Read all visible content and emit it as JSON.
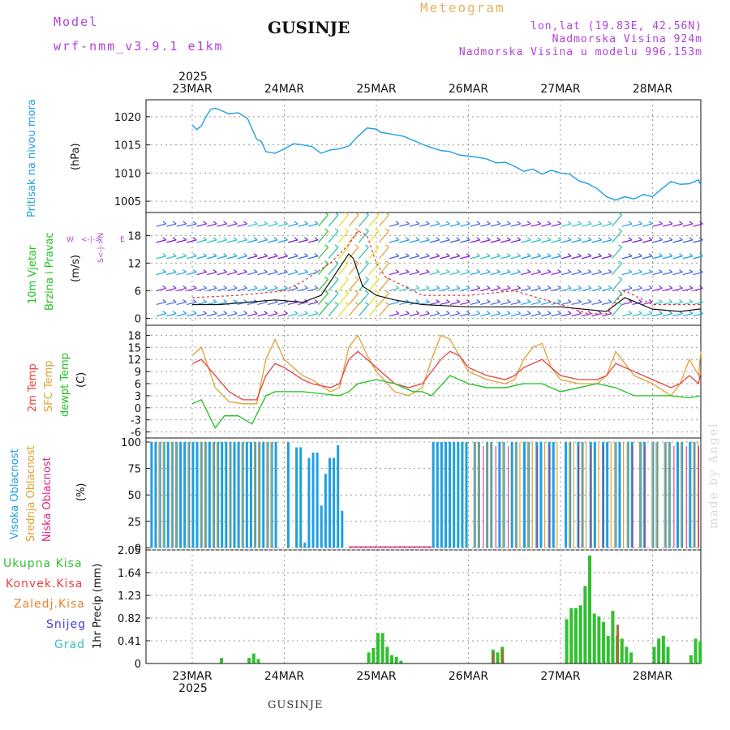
{
  "header": {
    "model_label": "Model",
    "model_name": "wrf-nmm_v3.9.1 e1km",
    "title": "GUSINJE",
    "meteogram": "Meteogram",
    "lonlat": "lon,lat (19.83E, 42.56N)",
    "altitude": "Nadmorska Visina 924m",
    "model_altitude": "Nadmorska Visina u modelu 996.153m",
    "year": "2025"
  },
  "footer": {
    "name": "GUSINJE",
    "made_by": "made by Angel"
  },
  "colors": {
    "pressure": "#1e9fe0",
    "gust": "#e83030",
    "wind_speed": "#111111",
    "temp2m": "#e84040",
    "sfc_temp": "#e0a030",
    "dewpt": "#20c020",
    "high_cloud": "#1e9fe0",
    "mid_cloud": "#e0a030",
    "low_cloud": "#e0207a",
    "precip_total": "#30c030",
    "precip_frozen": "#a07030"
  },
  "x_ticks": [
    "23MAR",
    "24MAR",
    "25MAR",
    "26MAR",
    "27MAR",
    "28MAR"
  ],
  "panels": {
    "pressure": {
      "ylabel_main": "Pritisak na nivou mora",
      "unit": "(hPa)",
      "ticks": [
        "1005",
        "1010",
        "1015",
        "1020"
      ]
    },
    "wind": {
      "ylabel_a": "10m Vjetar",
      "ylabel_b": "Brzina i Pravac",
      "unit": "(m/s)",
      "ticks": [
        "0",
        "6",
        "12",
        "18"
      ],
      "compass_w": "W",
      "compass_e": "E",
      "compass_arrow": "<-|->",
      "compass_ns": "S<-|->N"
    },
    "temp": {
      "label_2m": "2m Temp",
      "label_sfc": "SFC Temp",
      "label_dew": "dewpt Temp",
      "unit": "(C)",
      "ticks": [
        "-6",
        "-3",
        "0",
        "3",
        "6",
        "9",
        "12",
        "15",
        "18"
      ]
    },
    "cloud": {
      "label_high": "Visoka Oblacnost",
      "label_mid": "Srednja Oblacnost",
      "label_low": "Niska Oblacnost",
      "unit": "(%)",
      "ticks": [
        "0",
        "25",
        "50",
        "75",
        "100"
      ]
    },
    "precip": {
      "legend_total": "Ukupna Kisa",
      "legend_conv": "Konvek.Kisa",
      "legend_frozen": "Zaledj.Kisa",
      "legend_snow": "Snijeg",
      "legend_hail": "Grad",
      "ylabel": "1hr Precip (mm)",
      "ticks": [
        "0",
        "0.41",
        "0.82",
        "1.23",
        "1.64",
        "2.05"
      ]
    }
  },
  "chart_data": [
    {
      "type": "line",
      "title": "",
      "ylabel": "Pritisak na nivou mora (hPa)",
      "ylim": [
        1003,
        1023
      ],
      "series": [
        {
          "x": [
            0,
            0.05,
            0.1,
            0.15,
            0.2,
            0.25,
            0.3,
            0.4,
            0.5,
            0.6,
            0.7,
            0.75,
            0.8,
            0.9,
            1.0,
            1.1,
            1.2,
            1.3,
            1.4,
            1.5,
            1.6,
            1.7,
            1.8,
            1.9,
            2.0,
            2.05,
            2.1,
            2.2,
            2.3,
            2.4,
            2.5,
            2.6,
            2.7,
            2.8,
            2.9,
            3.0,
            3.1,
            3.2,
            3.3,
            3.4,
            3.5,
            3.6,
            3.7,
            3.8,
            3.9,
            4.0,
            4.1,
            4.2,
            4.3,
            4.4,
            4.5,
            4.6,
            4.7,
            4.8,
            4.9,
            5.0,
            5.1,
            5.2,
            5.3,
            5.4,
            5.5,
            5.6
          ],
          "y": [
            1018.5,
            1017.7,
            1018.4,
            1020,
            1021.3,
            1021.5,
            1021.2,
            1020.5,
            1020.7,
            1019.7,
            1016,
            1015.6,
            1013.8,
            1013.5,
            1014.3,
            1015.2,
            1015,
            1014.7,
            1013.5,
            1014.1,
            1014.3,
            1014.8,
            1016.5,
            1018,
            1017.8,
            1017.2,
            1017.1,
            1016.8,
            1016.5,
            1015.8,
            1015.1,
            1014.5,
            1014,
            1013.8,
            1013.2,
            1013,
            1012.8,
            1012.5,
            1011.8,
            1011.9,
            1011.2,
            1010.3,
            1010.7,
            1009.8,
            1010.5,
            1010,
            1009.8,
            1008.6,
            1008.1,
            1007.2,
            1005.8,
            1005.2,
            1005.8,
            1005.4,
            1006.2,
            1005.8,
            1007.2,
            1008.5,
            1008,
            1008.1,
            1008.8,
            1007.8
          ]
        }
      ]
    },
    {
      "type": "line",
      "title": "",
      "ylabel": "10m Vjetar Brzina i Pravac (m/s)",
      "ylim": [
        -1,
        23
      ],
      "series": [
        {
          "x": [
            0,
            0.3,
            0.6,
            0.9,
            1.2,
            1.4,
            1.6,
            1.7,
            1.75,
            1.85,
            2.0,
            2.2,
            2.5,
            3.0,
            3.5,
            4.0,
            4.5,
            4.7,
            5.0,
            5.3,
            5.5,
            5.6
          ],
          "y": [
            3,
            3,
            3.5,
            4,
            3.5,
            5,
            11,
            14,
            13,
            7,
            5,
            4,
            3,
            2.5,
            2.5,
            2.5,
            1.5,
            4.5,
            2,
            1.5,
            2,
            2
          ]
        },
        {
          "x": [
            0,
            0.5,
            1,
            1.2,
            1.5,
            1.7,
            1.8,
            1.9,
            2.0,
            2.1,
            2.5,
            3,
            3.5,
            4,
            4.3,
            4.5,
            4.7,
            5,
            5.3,
            5.6
          ],
          "y": [
            4.5,
            5,
            6,
            8,
            12,
            16,
            19,
            18,
            12,
            9,
            5,
            5,
            6,
            3,
            1,
            1,
            6,
            3,
            3,
            3
          ]
        }
      ]
    },
    {
      "type": "line",
      "title": "",
      "ylabel": "Temp (C)",
      "ylim": [
        -7,
        20
      ],
      "series": [
        {
          "x": [
            0,
            0.1,
            0.25,
            0.4,
            0.55,
            0.7,
            0.8,
            0.9,
            1.0,
            1.2,
            1.3,
            1.5,
            1.6,
            1.7,
            1.8,
            1.9,
            2.0,
            2.2,
            2.35,
            2.5,
            2.6,
            2.7,
            2.8,
            2.9,
            3.0,
            3.2,
            3.4,
            3.5,
            3.6,
            3.7,
            3.8,
            3.9,
            4.0,
            4.2,
            4.4,
            4.5,
            4.6,
            4.7,
            4.8,
            5.0,
            5.2,
            5.3,
            5.4,
            5.5,
            5.6
          ],
          "y": [
            11,
            12,
            8,
            4,
            2,
            2,
            8,
            11,
            10,
            7,
            6,
            5,
            6,
            12,
            14,
            12,
            10,
            6,
            5,
            6,
            9,
            12,
            14,
            13,
            10,
            8,
            7,
            8,
            10,
            11,
            12,
            10,
            8,
            7,
            7,
            8,
            11,
            10,
            9,
            7,
            5,
            6,
            8,
            6,
            9
          ]
        },
        {
          "x": [
            0,
            0.1,
            0.25,
            0.4,
            0.55,
            0.7,
            0.8,
            0.9,
            1.0,
            1.2,
            1.3,
            1.5,
            1.6,
            1.7,
            1.8,
            1.9,
            2.0,
            2.2,
            2.35,
            2.5,
            2.6,
            2.7,
            2.8,
            2.9,
            3.0,
            3.2,
            3.4,
            3.5,
            3.6,
            3.7,
            3.8,
            3.9,
            4.0,
            4.2,
            4.4,
            4.5,
            4.6,
            4.7,
            4.8,
            5.0,
            5.2,
            5.3,
            5.4,
            5.5,
            5.6
          ],
          "y": [
            13,
            15,
            5,
            1.5,
            1,
            1,
            12,
            17,
            12,
            8,
            7,
            4,
            5,
            15,
            18,
            13,
            9,
            4,
            3,
            5,
            12,
            18,
            17,
            13,
            9,
            7,
            6,
            7,
            12,
            15,
            16,
            10,
            7,
            6,
            6,
            8,
            14,
            11,
            8,
            6,
            3,
            6,
            12,
            8,
            14
          ]
        },
        {
          "x": [
            0,
            0.1,
            0.25,
            0.35,
            0.5,
            0.65,
            0.8,
            0.9,
            1.0,
            1.2,
            1.4,
            1.6,
            1.7,
            1.8,
            2.0,
            2.2,
            2.4,
            2.5,
            2.6,
            2.8,
            3.0,
            3.2,
            3.4,
            3.6,
            3.8,
            4.0,
            4.2,
            4.4,
            4.6,
            4.8,
            5.0,
            5.2,
            5.4,
            5.6
          ],
          "y": [
            1,
            2,
            -5,
            -2,
            -2,
            -4,
            3,
            4,
            4,
            4,
            3.5,
            3,
            4,
            6,
            7,
            6,
            4,
            4,
            3,
            8,
            6,
            5,
            5,
            6,
            6,
            4,
            5,
            6,
            5,
            3,
            3,
            3,
            2.5,
            3
          ]
        }
      ]
    },
    {
      "type": "bar",
      "title": "",
      "ylabel": "Oblacnost (%)",
      "ylim": [
        0,
        100
      ],
      "series": [
        {
          "values_summary": "High cloud ~100% from 23MAR to mid 24MAR, partial 24MAR 0.8-1.7, clear 25MAR, ~100% from 26MAR onward"
        }
      ]
    },
    {
      "type": "bar",
      "title": "",
      "ylabel": "1hr Precip (mm)",
      "ylim": [
        0,
        2.05
      ],
      "series": [
        {
          "x": [
            0.3,
            0.6,
            0.65,
            0.7,
            1.9,
            1.95,
            2.0,
            2.05,
            2.1,
            2.15,
            2.2,
            2.25,
            3.25,
            3.3,
            3.35,
            4.05,
            4.1,
            4.15,
            4.2,
            4.25,
            4.3,
            4.35,
            4.4,
            4.45,
            4.5,
            4.55,
            4.6,
            4.65,
            4.7,
            4.75,
            5.0,
            5.05,
            5.1,
            5.15,
            5.4,
            5.45,
            5.5
          ],
          "y": [
            0.1,
            0.1,
            0.18,
            0.08,
            0.2,
            0.28,
            0.55,
            0.55,
            0.3,
            0.15,
            0.12,
            0.05,
            0.25,
            0.2,
            0.3,
            0.8,
            1.0,
            1.0,
            1.05,
            1.4,
            1.95,
            0.9,
            0.85,
            0.75,
            0.5,
            0.95,
            0.5,
            0.45,
            0.3,
            0.2,
            0.3,
            0.45,
            0.5,
            0.3,
            0.15,
            0.45,
            0.4
          ]
        }
      ]
    }
  ]
}
